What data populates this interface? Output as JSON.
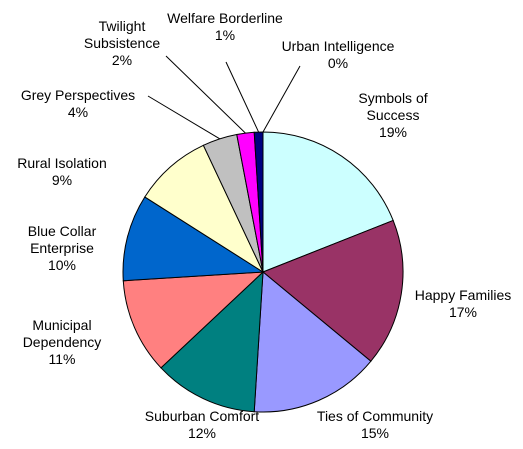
{
  "chart_data": {
    "type": "pie",
    "categories": [
      "Symbols of Success",
      "Happy Families",
      "Ties of Community",
      "Suburban Comfort",
      "Municipal Dependency",
      "Blue Collar Enterprise",
      "Rural Isolation",
      "Grey Perspectives",
      "Twilight Subsistence",
      "Welfare Borderline",
      "Urban Intelligence"
    ],
    "values": [
      19,
      17,
      15,
      12,
      11,
      10,
      9,
      4,
      2,
      1,
      0
    ],
    "value_labels": [
      "19%",
      "17%",
      "15%",
      "12%",
      "11%",
      "10%",
      "9%",
      "4%",
      "2%",
      "1%",
      "0%"
    ],
    "colors": [
      "#ccffff",
      "#993366",
      "#9999ff",
      "#008080",
      "#ff8080",
      "#0066cc",
      "#ffffcc",
      "#c0c0c0",
      "#ff00ff",
      "#000080",
      "#0000ff"
    ]
  }
}
